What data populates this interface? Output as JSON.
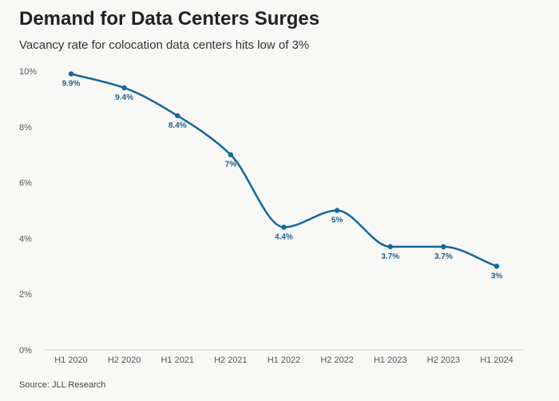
{
  "header": {
    "title": "Demand for Data Centers Surges",
    "subtitle": "Vacancy rate for colocation data centers hits low of 3%"
  },
  "footer": {
    "source": "Source: JLL Research"
  },
  "colors": {
    "line": "#14689c",
    "label": "#1f5f8b",
    "grid": "#e2e2e2",
    "axis": "#cfcfcf"
  },
  "chart_data": {
    "type": "line",
    "title": "Demand for Data Centers Surges",
    "subtitle": "Vacancy rate for colocation data centers hits low of 3%",
    "xlabel": "",
    "ylabel": "",
    "categories": [
      "H1 2020",
      "H2 2020",
      "H1 2021",
      "H2 2021",
      "H1 2022",
      "H2 2022",
      "H1 2023",
      "H2 2023",
      "H1 2024"
    ],
    "series": [
      {
        "name": "Vacancy rate",
        "values": [
          9.9,
          9.4,
          8.4,
          7.0,
          4.4,
          5.0,
          3.7,
          3.7,
          3.0
        ],
        "labels": [
          "9.9%",
          "9.4%",
          "8.4%",
          "7%",
          "4.4%",
          "5%",
          "3.7%",
          "3.7%",
          "3%"
        ]
      }
    ],
    "ylim": [
      0,
      10
    ],
    "yticks": [
      0,
      2,
      4,
      6,
      8,
      10
    ],
    "ytick_labels": [
      "0%",
      "2%",
      "4%",
      "6%",
      "8%",
      "10%"
    ],
    "grid": false,
    "legend": "none"
  }
}
